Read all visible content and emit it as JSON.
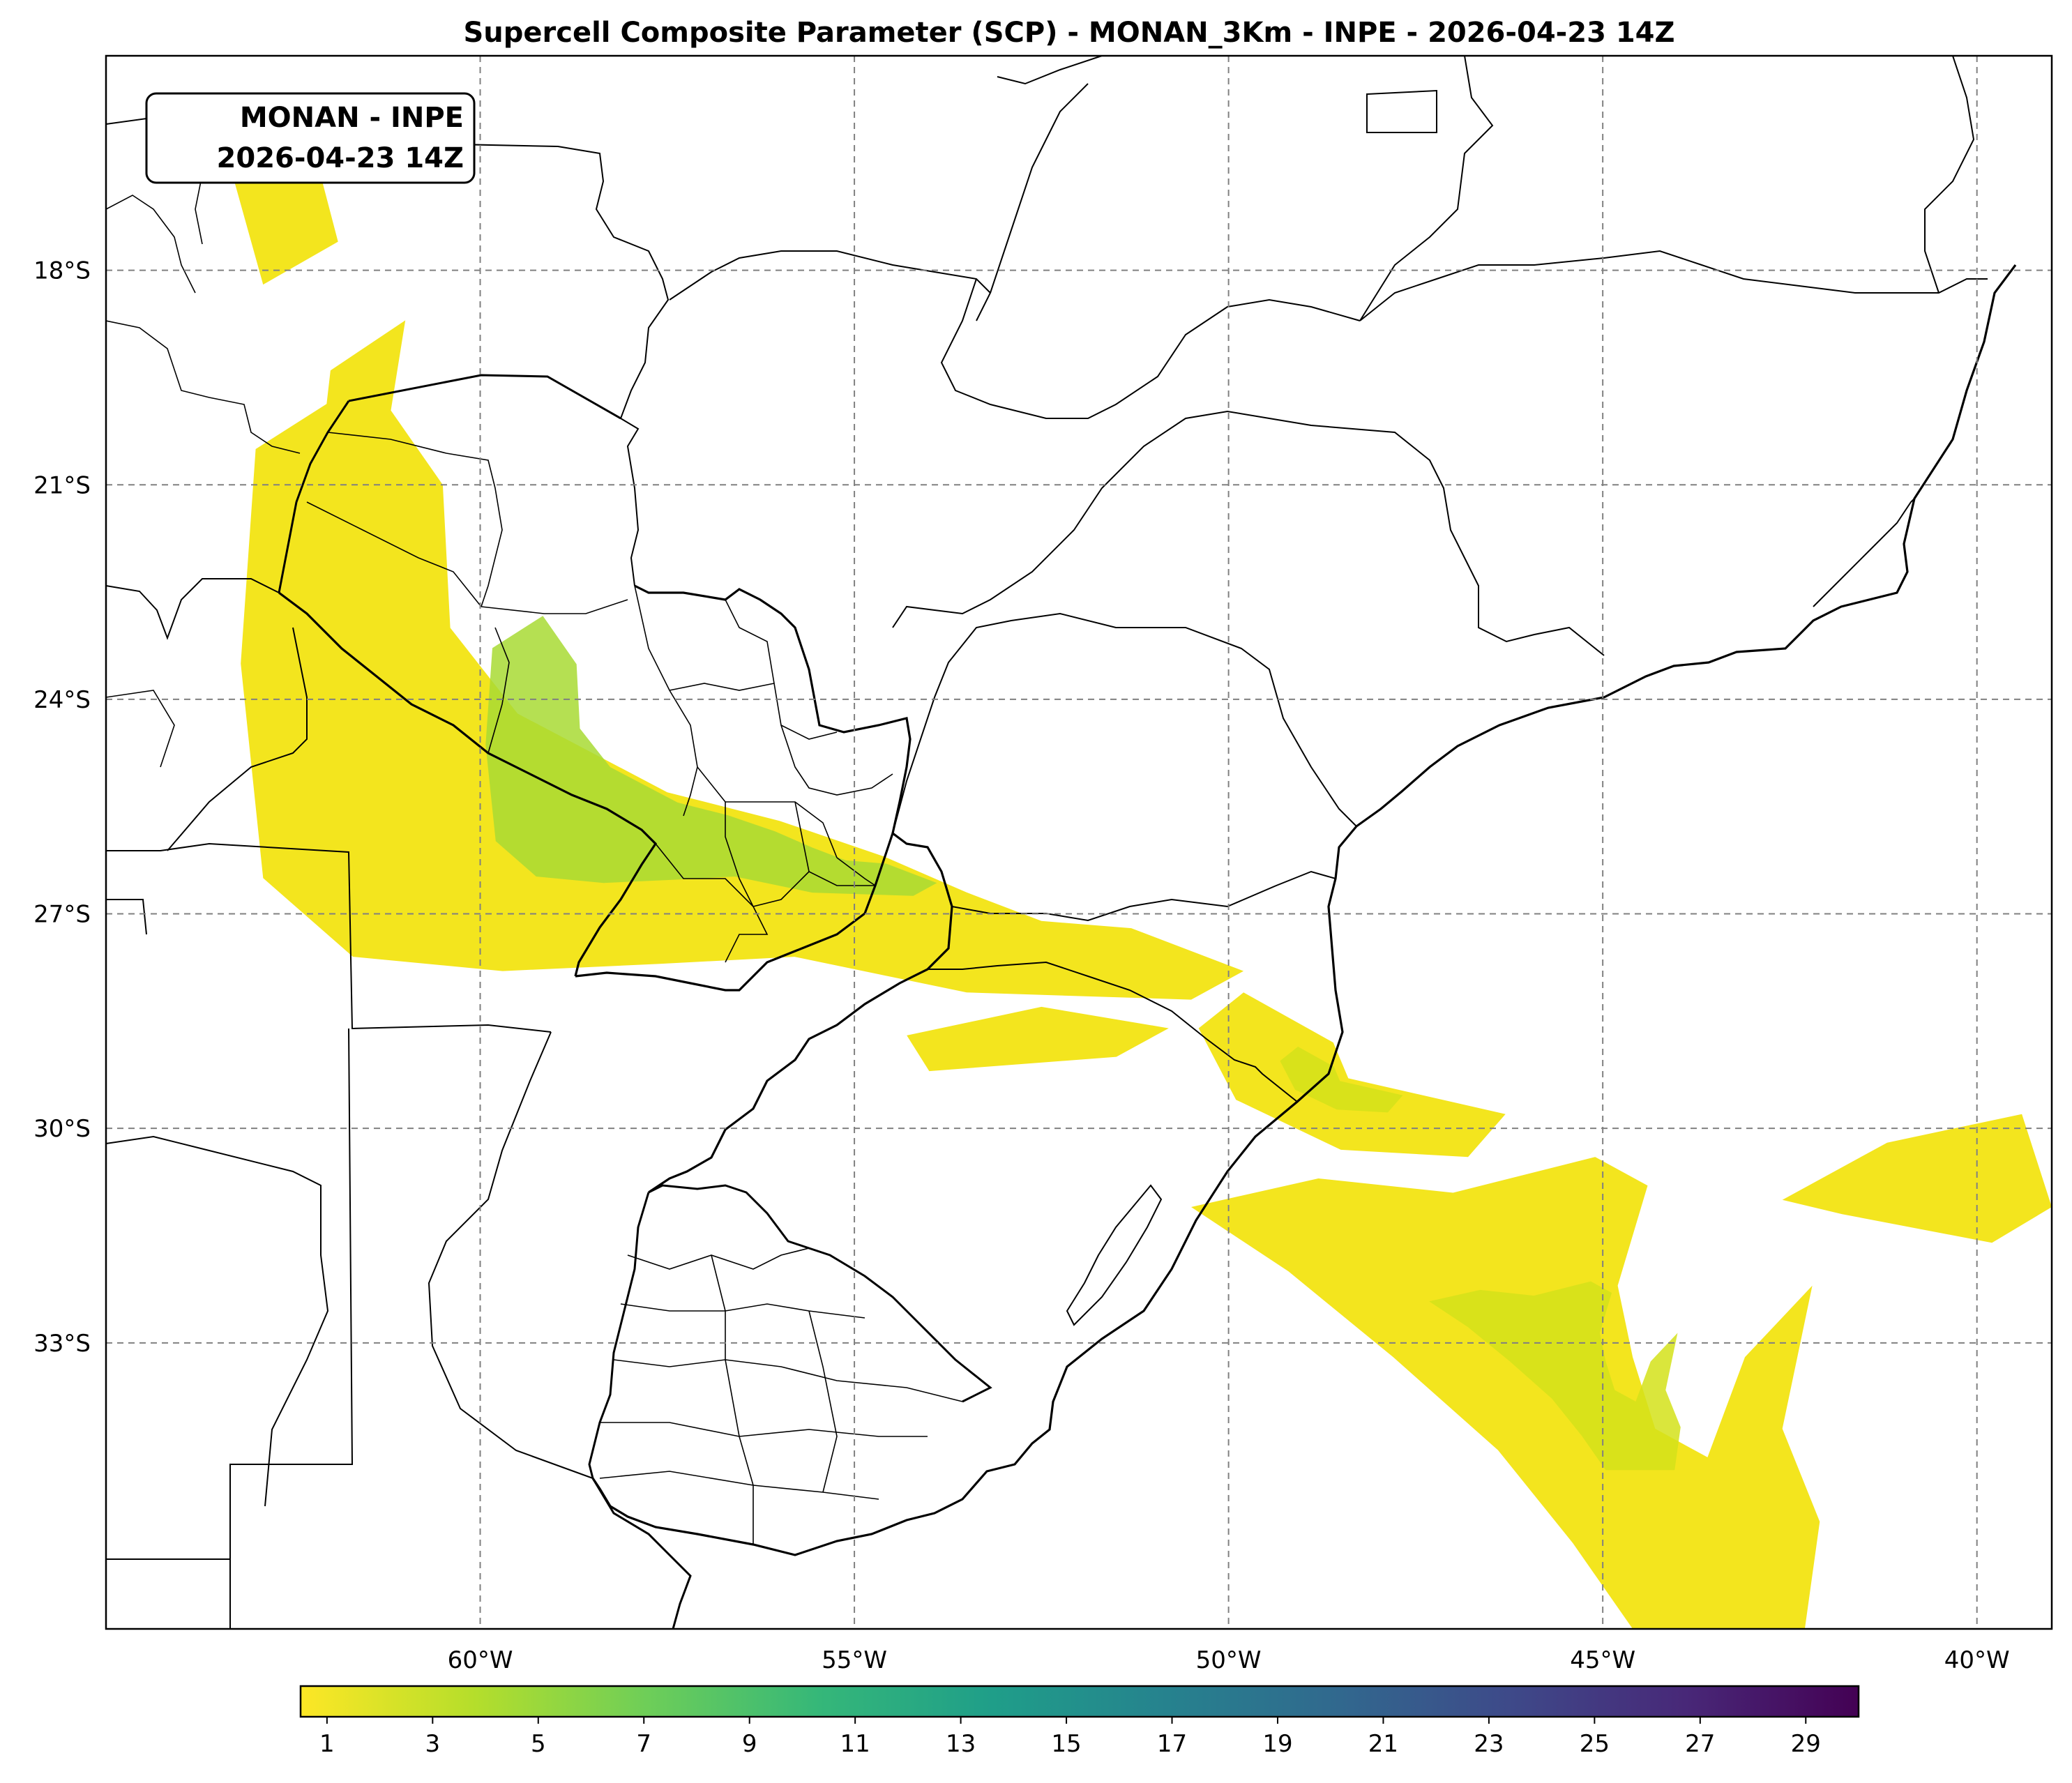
{
  "title": "Supercell Composite Parameter (SCP) - MONAN_3Km - INPE - 2026-04-23 14Z",
  "info_box": {
    "line1": "MONAN - INPE",
    "line2": "2026-04-23 14Z"
  },
  "map": {
    "lon_range": [
      -65,
      -39
    ],
    "lat_range": [
      -37,
      -15
    ],
    "lon_ticks": [
      -60,
      -55,
      -50,
      -45,
      -40
    ],
    "lat_ticks": [
      -18,
      -21,
      -24,
      -27,
      -30,
      -33
    ],
    "lon_tick_labels": [
      "60°W",
      "55°W",
      "50°W",
      "45°W",
      "40°W"
    ],
    "lat_tick_labels": [
      "18°S",
      "21°S",
      "24°S",
      "27°S",
      "30°S",
      "33°S"
    ],
    "grid": "dashed"
  },
  "colorbar": {
    "min": 0.5,
    "max": 30,
    "ticks": [
      1,
      3,
      5,
      7,
      9,
      11,
      13,
      15,
      17,
      19,
      21,
      23,
      25,
      27,
      29
    ],
    "tick_labels": [
      "1",
      "3",
      "5",
      "7",
      "9",
      "11",
      "13",
      "15",
      "17",
      "19",
      "21",
      "23",
      "25",
      "27",
      "29"
    ],
    "colormap": [
      "#fde725",
      "#b5de2b",
      "#6ece58",
      "#35b779",
      "#1f9e89",
      "#26828e",
      "#31688e",
      "#3e4989",
      "#482878",
      "#440154"
    ]
  },
  "scp_areas": [
    {
      "name": "paraguay-chaco-band",
      "peak": 7,
      "points": [
        [
          -63,
          -20.5
        ],
        [
          -61.5,
          -19.5
        ],
        [
          -60.5,
          -21
        ],
        [
          -60.4,
          -23
        ],
        [
          -59.5,
          -24.2
        ],
        [
          -57.5,
          -25.3
        ],
        [
          -56,
          -25.7
        ],
        [
          -54.6,
          -26.2
        ],
        [
          -53.5,
          -26.7
        ],
        [
          -52.5,
          -27.1
        ],
        [
          -51.3,
          -27.2
        ],
        [
          -49.8,
          -27.8
        ],
        [
          -50.5,
          -28.2
        ],
        [
          -53.5,
          -28.1
        ],
        [
          -55.8,
          -27.6
        ],
        [
          -57.6,
          -27.7
        ],
        [
          -59.7,
          -27.8
        ],
        [
          -61.7,
          -27.6
        ],
        [
          -62.9,
          -26.5
        ],
        [
          -63.2,
          -23.5
        ]
      ]
    },
    {
      "name": "north-bolivia-cells",
      "peak": 2,
      "points": [
        [
          -63.3,
          -16.7
        ],
        [
          -62.2,
          -16.4
        ],
        [
          -61.9,
          -17.6
        ],
        [
          -62.9,
          -18.2
        ]
      ]
    },
    {
      "name": "mato-grosso-cell",
      "peak": 2,
      "points": [
        [
          -62,
          -19.4
        ],
        [
          -61,
          -18.7
        ],
        [
          -61.2,
          -20
        ],
        [
          -62.1,
          -20.3
        ]
      ]
    },
    {
      "name": "rs-central-band",
      "peak": 2,
      "points": [
        [
          -54.3,
          -28.7
        ],
        [
          -52.5,
          -28.3
        ],
        [
          -50.8,
          -28.6
        ],
        [
          -51.5,
          -29
        ],
        [
          -54,
          -29.2
        ]
      ]
    },
    {
      "name": "rs-coastal-cells",
      "peak": 3,
      "points": [
        [
          -49.8,
          -28.1
        ],
        [
          -48.6,
          -28.8
        ],
        [
          -48.4,
          -29.3
        ],
        [
          -46.3,
          -29.8
        ],
        [
          -46.8,
          -30.4
        ],
        [
          -48.5,
          -30.3
        ],
        [
          -49.9,
          -29.6
        ],
        [
          -50.4,
          -28.6
        ]
      ]
    },
    {
      "name": "atlantic-band",
      "peak": 5,
      "points": [
        [
          -50.5,
          -31.1
        ],
        [
          -48.8,
          -30.7
        ],
        [
          -47,
          -30.9
        ],
        [
          -45.1,
          -30.4
        ],
        [
          -44.4,
          -30.8
        ],
        [
          -44.8,
          -32.2
        ],
        [
          -44.6,
          -33.2
        ],
        [
          -44.3,
          -34.2
        ],
        [
          -43.6,
          -34.6
        ],
        [
          -43.1,
          -33.2
        ],
        [
          -42.2,
          -32.2
        ],
        [
          -42.6,
          -34.2
        ],
        [
          -42.1,
          -35.5
        ],
        [
          -42.3,
          -37
        ],
        [
          -44.6,
          -37
        ],
        [
          -45.4,
          -35.8
        ],
        [
          -46.4,
          -34.5
        ],
        [
          -47.8,
          -33.2
        ],
        [
          -49.2,
          -32
        ]
      ]
    },
    {
      "name": "east-atlantic-cells",
      "peak": 2,
      "points": [
        [
          -42.6,
          -31
        ],
        [
          -41.2,
          -30.2
        ],
        [
          -39.4,
          -29.8
        ],
        [
          -39,
          -31.1
        ],
        [
          -39.8,
          -31.6
        ],
        [
          -41.8,
          -31.2
        ]
      ]
    }
  ]
}
